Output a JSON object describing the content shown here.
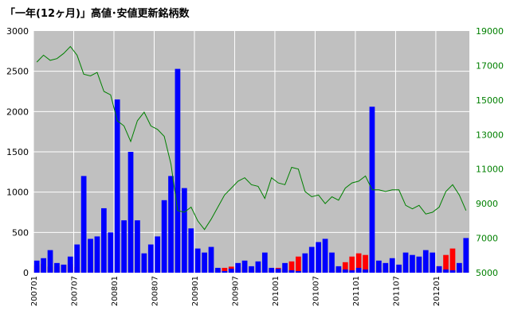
{
  "chart_data": {
    "type": "bar",
    "title": "「一年(12ヶ月)」高値･安値更新銘柄数",
    "colors": {
      "plot_background": "#c0c0c0",
      "grid": "#ffffff",
      "new_highs": "#ff0000",
      "new_lows": "#0000ff",
      "index_line": "#008000",
      "right_axis_text": "#008000"
    },
    "x_tick_labels": [
      "200701",
      "200707",
      "200801",
      "200807",
      "200901",
      "200907",
      "201001",
      "201007",
      "201101",
      "201107",
      "201201"
    ],
    "left_axis": {
      "ylim": [
        0,
        3000
      ],
      "ticks": [
        0,
        500,
        1000,
        1500,
        2000,
        2500,
        3000
      ]
    },
    "right_axis": {
      "ylim": [
        5000,
        19000
      ],
      "ticks": [
        5000,
        7000,
        9000,
        11000,
        13000,
        15000,
        17000,
        19000
      ]
    },
    "series": [
      {
        "kind": "bar",
        "color": "#ff0000",
        "points": [
          [
            "200701",
            90
          ],
          [
            "200702",
            110
          ],
          [
            "200703",
            75
          ],
          [
            "200704",
            80
          ],
          [
            "200705",
            95
          ],
          [
            "200706",
            105
          ],
          [
            "200707",
            70
          ],
          [
            "200708",
            15
          ],
          [
            "200709",
            25
          ],
          [
            "200710",
            20
          ],
          [
            "200711",
            10
          ],
          [
            "200712",
            5
          ],
          [
            "200801",
            5
          ],
          [
            "200802",
            5
          ],
          [
            "200803",
            5
          ],
          [
            "200804",
            15
          ],
          [
            "200805",
            35
          ],
          [
            "200806",
            15
          ],
          [
            "200807",
            5
          ],
          [
            "200808",
            5
          ],
          [
            "200809",
            3
          ],
          [
            "200810",
            2
          ],
          [
            "200811",
            3
          ],
          [
            "200812",
            5
          ],
          [
            "200901",
            5
          ],
          [
            "200902",
            2
          ],
          [
            "200903",
            5
          ],
          [
            "200904",
            40
          ],
          [
            "200905",
            60
          ],
          [
            "200906",
            75
          ],
          [
            "200907",
            50
          ],
          [
            "200908",
            70
          ],
          [
            "200909",
            45
          ],
          [
            "200910",
            20
          ],
          [
            "200911",
            10
          ],
          [
            "200912",
            40
          ],
          [
            "201001",
            60
          ],
          [
            "201002",
            45
          ],
          [
            "201003",
            140
          ],
          [
            "201004",
            200
          ],
          [
            "201005",
            20
          ],
          [
            "201006",
            10
          ],
          [
            "201007",
            15
          ],
          [
            "201008",
            10
          ],
          [
            "201009",
            20
          ],
          [
            "201010",
            60
          ],
          [
            "201011",
            130
          ],
          [
            "201012",
            200
          ],
          [
            "201101",
            240
          ],
          [
            "201102",
            220
          ],
          [
            "201103",
            30
          ],
          [
            "201104",
            40
          ],
          [
            "201105",
            30
          ],
          [
            "201106",
            20
          ],
          [
            "201107",
            35
          ],
          [
            "201108",
            8
          ],
          [
            "201109",
            10
          ],
          [
            "201110",
            15
          ],
          [
            "201111",
            5
          ],
          [
            "201112",
            15
          ],
          [
            "201201",
            80
          ],
          [
            "201202",
            220
          ],
          [
            "201203",
            300
          ],
          [
            "201204",
            60
          ],
          [
            "201205",
            20
          ]
        ]
      },
      {
        "kind": "bar",
        "color": "#0000ff",
        "points": [
          [
            "200701",
            150
          ],
          [
            "200702",
            180
          ],
          [
            "200703",
            280
          ],
          [
            "200704",
            120
          ],
          [
            "200705",
            100
          ],
          [
            "200706",
            200
          ],
          [
            "200707",
            350
          ],
          [
            "200708",
            1200
          ],
          [
            "200709",
            420
          ],
          [
            "200710",
            450
          ],
          [
            "200711",
            800
          ],
          [
            "200712",
            500
          ],
          [
            "200801",
            2150
          ],
          [
            "200802",
            650
          ],
          [
            "200803",
            1500
          ],
          [
            "200804",
            650
          ],
          [
            "200805",
            240
          ],
          [
            "200806",
            350
          ],
          [
            "200807",
            450
          ],
          [
            "200808",
            900
          ],
          [
            "200809",
            1200
          ],
          [
            "200810",
            2530
          ],
          [
            "200811",
            1050
          ],
          [
            "200812",
            550
          ],
          [
            "200901",
            300
          ],
          [
            "200902",
            250
          ],
          [
            "200903",
            320
          ],
          [
            "200904",
            60
          ],
          [
            "200905",
            20
          ],
          [
            "200906",
            50
          ],
          [
            "200907",
            120
          ],
          [
            "200908",
            150
          ],
          [
            "200909",
            80
          ],
          [
            "200910",
            140
          ],
          [
            "200911",
            250
          ],
          [
            "200912",
            60
          ],
          [
            "201001",
            50
          ],
          [
            "201002",
            120
          ],
          [
            "201003",
            30
          ],
          [
            "201004",
            20
          ],
          [
            "201005",
            240
          ],
          [
            "201006",
            320
          ],
          [
            "201007",
            380
          ],
          [
            "201008",
            420
          ],
          [
            "201009",
            250
          ],
          [
            "201010",
            80
          ],
          [
            "201011",
            40
          ],
          [
            "201012",
            30
          ],
          [
            "201101",
            60
          ],
          [
            "201102",
            40
          ],
          [
            "201103",
            2060
          ],
          [
            "201104",
            150
          ],
          [
            "201105",
            120
          ],
          [
            "201106",
            180
          ],
          [
            "201107",
            100
          ],
          [
            "201108",
            250
          ],
          [
            "201109",
            220
          ],
          [
            "201110",
            200
          ],
          [
            "201111",
            280
          ],
          [
            "201112",
            250
          ],
          [
            "201201",
            80
          ],
          [
            "201202",
            40
          ],
          [
            "201203",
            30
          ],
          [
            "201204",
            120
          ],
          [
            "201205",
            430
          ]
        ]
      },
      {
        "kind": "line",
        "axis": "right",
        "color": "#008000",
        "points": [
          [
            "200701",
            17200
          ],
          [
            "200702",
            17600
          ],
          [
            "200703",
            17300
          ],
          [
            "200704",
            17400
          ],
          [
            "200705",
            17700
          ],
          [
            "200706",
            18100
          ],
          [
            "200707",
            17600
          ],
          [
            "200708",
            16500
          ],
          [
            "200709",
            16400
          ],
          [
            "200710",
            16600
          ],
          [
            "200711",
            15500
          ],
          [
            "200712",
            15300
          ],
          [
            "200801",
            13800
          ],
          [
            "200802",
            13500
          ],
          [
            "200803",
            12600
          ],
          [
            "200804",
            13800
          ],
          [
            "200805",
            14300
          ],
          [
            "200806",
            13500
          ],
          [
            "200807",
            13300
          ],
          [
            "200808",
            12900
          ],
          [
            "200809",
            11300
          ],
          [
            "200810",
            8600
          ],
          [
            "200811",
            8500
          ],
          [
            "200812",
            8800
          ],
          [
            "200901",
            8000
          ],
          [
            "200902",
            7500
          ],
          [
            "200903",
            8100
          ],
          [
            "200904",
            8800
          ],
          [
            "200905",
            9500
          ],
          [
            "200906",
            9900
          ],
          [
            "200907",
            10300
          ],
          [
            "200908",
            10500
          ],
          [
            "200909",
            10100
          ],
          [
            "200910",
            10000
          ],
          [
            "200911",
            9300
          ],
          [
            "200912",
            10500
          ],
          [
            "201001",
            10200
          ],
          [
            "201002",
            10100
          ],
          [
            "201003",
            11100
          ],
          [
            "201004",
            11000
          ],
          [
            "201005",
            9700
          ],
          [
            "201006",
            9400
          ],
          [
            "201007",
            9500
          ],
          [
            "201008",
            9000
          ],
          [
            "201009",
            9400
          ],
          [
            "201010",
            9200
          ],
          [
            "201011",
            9900
          ],
          [
            "201012",
            10200
          ],
          [
            "201101",
            10300
          ],
          [
            "201102",
            10600
          ],
          [
            "201103",
            9800
          ],
          [
            "201104",
            9800
          ],
          [
            "201105",
            9700
          ],
          [
            "201106",
            9800
          ],
          [
            "201107",
            9800
          ],
          [
            "201108",
            8900
          ],
          [
            "201109",
            8700
          ],
          [
            "201110",
            8900
          ],
          [
            "201111",
            8400
          ],
          [
            "201112",
            8500
          ],
          [
            "201201",
            8800
          ],
          [
            "201202",
            9700
          ],
          [
            "201203",
            10100
          ],
          [
            "201204",
            9500
          ],
          [
            "201205",
            8600
          ]
        ]
      }
    ]
  }
}
